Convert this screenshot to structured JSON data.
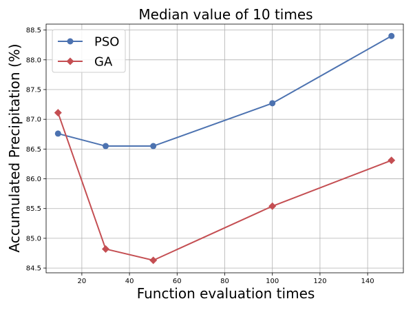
{
  "chart_data": {
    "type": "line",
    "title": "Median value of 10 times",
    "xlabel": "Function evaluation times",
    "ylabel": "Accumulated Precipitation (%)",
    "xlim": [
      5,
      155
    ],
    "ylim": [
      84.42,
      88.6
    ],
    "xticks": [
      20,
      40,
      60,
      80,
      100,
      120,
      140
    ],
    "yticks": [
      84.5,
      85.0,
      85.5,
      86.0,
      86.5,
      87.0,
      87.5,
      88.0,
      88.5
    ],
    "grid": true,
    "legend_position": "upper-left",
    "series": [
      {
        "name": "PSO",
        "color": "#4c72b0",
        "marker": "circle",
        "x": [
          10,
          30,
          50,
          100,
          150
        ],
        "y": [
          86.76,
          86.55,
          86.55,
          87.27,
          88.4
        ]
      },
      {
        "name": "GA",
        "color": "#c44e52",
        "marker": "diamond",
        "x": [
          10,
          30,
          50,
          100,
          150
        ],
        "y": [
          87.11,
          84.82,
          84.63,
          85.54,
          86.31
        ]
      }
    ]
  }
}
